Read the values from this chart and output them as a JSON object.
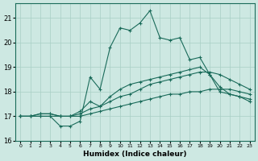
{
  "xlabel": "Humidex (Indice chaleur)",
  "ylabel": "",
  "background_color": "#cde8e2",
  "line_color": "#1a6b5a",
  "xlim": [
    -0.5,
    23.5
  ],
  "ylim": [
    16.0,
    21.6
  ],
  "yticks": [
    16,
    17,
    18,
    19,
    20,
    21
  ],
  "xticks": [
    0,
    1,
    2,
    3,
    4,
    5,
    6,
    7,
    8,
    9,
    10,
    11,
    12,
    13,
    14,
    15,
    16,
    17,
    18,
    19,
    20,
    21,
    22,
    23
  ],
  "series": [
    {
      "x": [
        0,
        1,
        2,
        3,
        4,
        5,
        6,
        7,
        8,
        9,
        10,
        11,
        12,
        13,
        14,
        15,
        16,
        17,
        18,
        19,
        20,
        21,
        22,
        23
      ],
      "y": [
        17.0,
        17.0,
        17.0,
        17.0,
        16.6,
        16.6,
        16.8,
        18.6,
        18.1,
        19.8,
        20.6,
        20.5,
        20.8,
        21.3,
        20.2,
        20.1,
        20.2,
        19.3,
        19.4,
        18.7,
        18.0,
        17.9,
        17.8,
        17.6
      ]
    },
    {
      "x": [
        0,
        1,
        2,
        3,
        4,
        5,
        6,
        7,
        8,
        9,
        10,
        11,
        12,
        13,
        14,
        15,
        16,
        17,
        18,
        19,
        20,
        21,
        22,
        23
      ],
      "y": [
        17.0,
        17.0,
        17.1,
        17.1,
        17.0,
        17.0,
        17.2,
        17.6,
        17.4,
        17.8,
        18.1,
        18.3,
        18.4,
        18.5,
        18.6,
        18.7,
        18.8,
        18.9,
        19.0,
        18.7,
        18.2,
        17.9,
        17.8,
        17.7
      ]
    },
    {
      "x": [
        0,
        1,
        2,
        3,
        4,
        5,
        6,
        7,
        8,
        9,
        10,
        11,
        12,
        13,
        14,
        15,
        16,
        17,
        18,
        19,
        20,
        21,
        22,
        23
      ],
      "y": [
        17.0,
        17.0,
        17.1,
        17.1,
        17.0,
        17.0,
        17.1,
        17.3,
        17.4,
        17.6,
        17.8,
        17.9,
        18.1,
        18.3,
        18.4,
        18.5,
        18.6,
        18.7,
        18.8,
        18.8,
        18.7,
        18.5,
        18.3,
        18.1
      ]
    },
    {
      "x": [
        0,
        1,
        2,
        3,
        4,
        5,
        6,
        7,
        8,
        9,
        10,
        11,
        12,
        13,
        14,
        15,
        16,
        17,
        18,
        19,
        20,
        21,
        22,
        23
      ],
      "y": [
        17.0,
        17.0,
        17.0,
        17.0,
        17.0,
        17.0,
        17.0,
        17.1,
        17.2,
        17.3,
        17.4,
        17.5,
        17.6,
        17.7,
        17.8,
        17.9,
        17.9,
        18.0,
        18.0,
        18.1,
        18.1,
        18.1,
        18.0,
        17.9
      ]
    }
  ]
}
